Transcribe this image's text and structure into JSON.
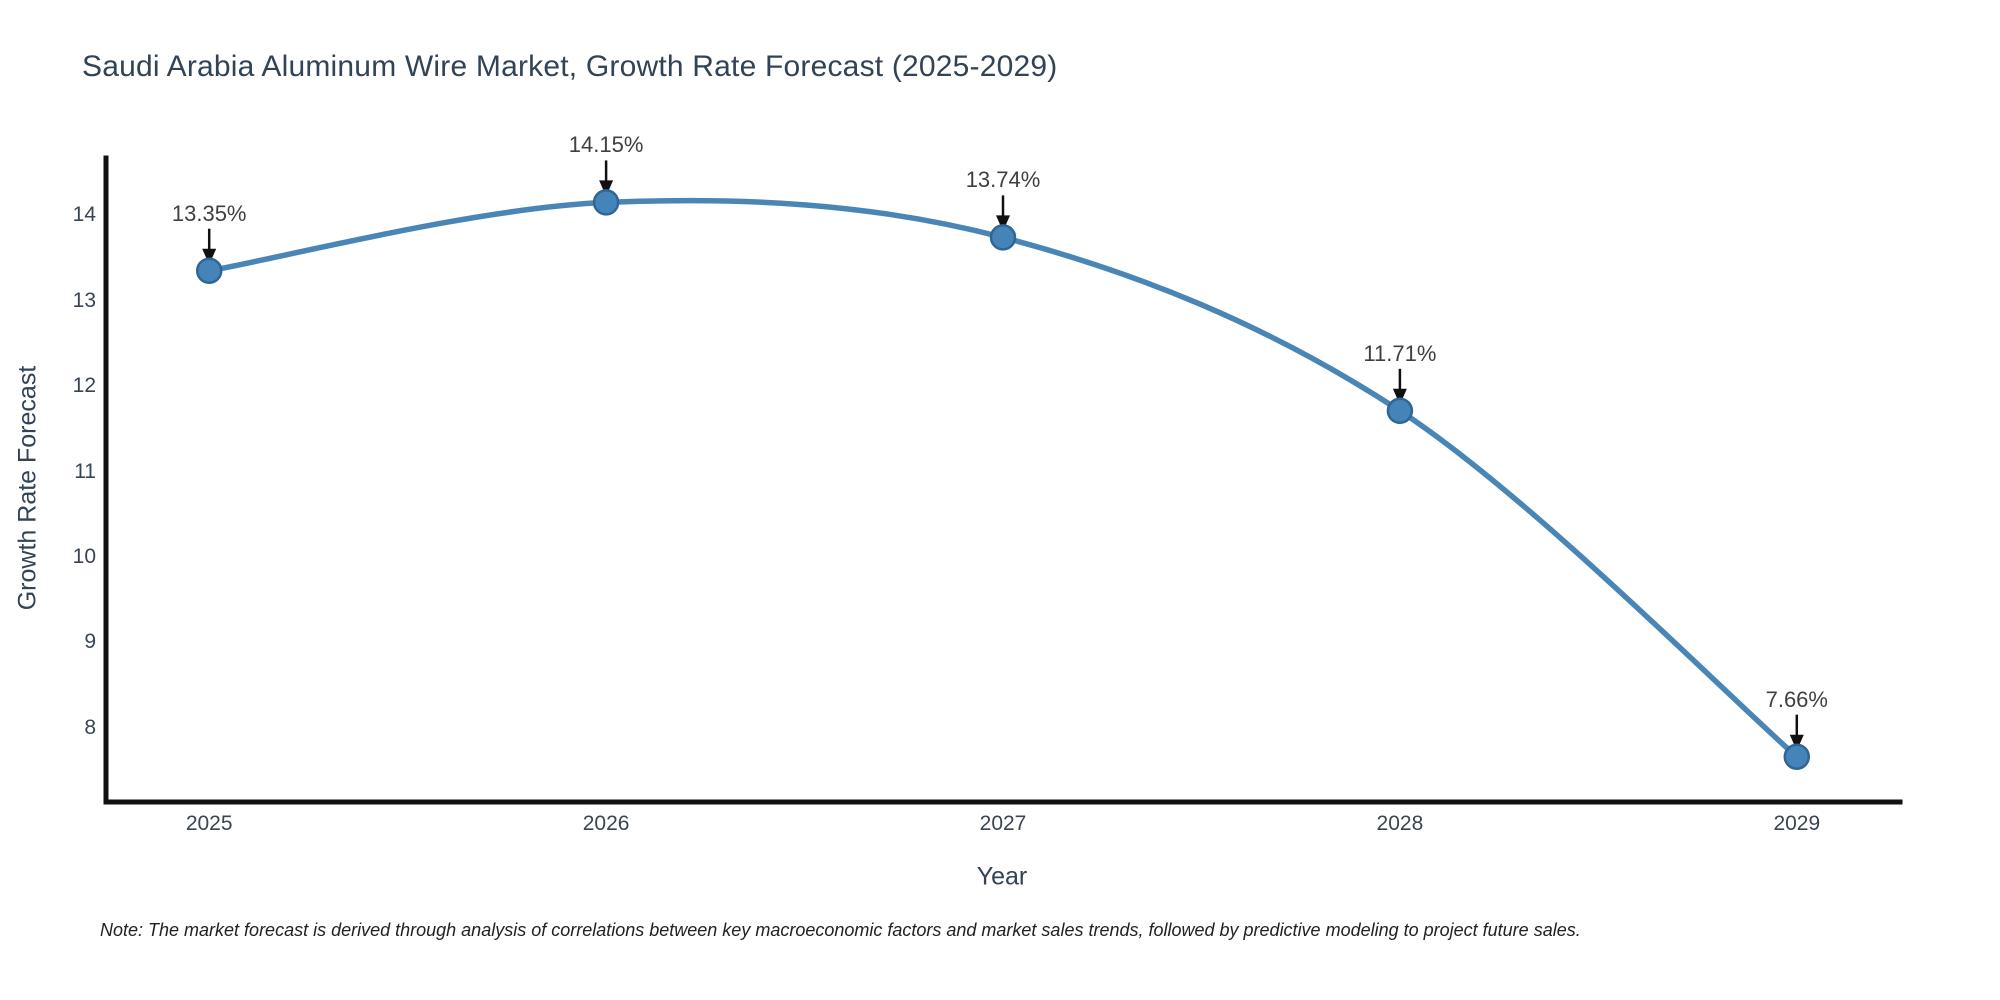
{
  "title": "Saudi Arabia Aluminum Wire Market, Growth Rate Forecast (2025-2029)",
  "note": "Note: The market forecast is derived through analysis of correlations between key macroeconomic factors and market sales trends, followed by predictive modeling to project future sales.",
  "chart_data": {
    "type": "line",
    "title": "Saudi Arabia Aluminum Wire Market, Growth Rate Forecast (2025-2029)",
    "xlabel": "Year",
    "ylabel": "Growth Rate Forecast",
    "categories": [
      2025,
      2026,
      2027,
      2028,
      2029
    ],
    "x_tick_labels": [
      "2025",
      "2026",
      "2027",
      "2028",
      "2029"
    ],
    "values": [
      13.35,
      14.15,
      13.74,
      11.71,
      7.66
    ],
    "point_labels": [
      "13.35%",
      "14.15%",
      "13.74%",
      "11.71%",
      "7.66%"
    ],
    "y_ticks": [
      8,
      9,
      10,
      11,
      12,
      13,
      14
    ],
    "xlim": [
      2024.74,
      2029.26
    ],
    "ylim": [
      7.13,
      14.67
    ],
    "grid": false,
    "legend": "none",
    "curve": "spline",
    "line_color": "#4a86b5",
    "marker_fill_color": "#4584b8",
    "marker_edge_color": "#2f6697",
    "axis_spine_color": "#111111",
    "annotation_arrow_color": "#111111",
    "annotation_text_color": "#3f4043",
    "title_color": "#334356",
    "tick_color": "#3a4554"
  }
}
